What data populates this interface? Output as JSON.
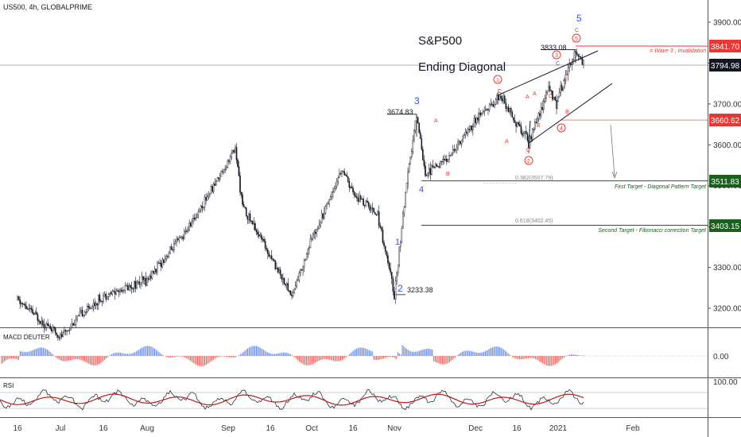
{
  "header": {
    "symbol": "US500, 4h, GLOBALPRIME"
  },
  "annotations": {
    "title": "S&P500",
    "subtitle": "Ending Diagonal",
    "wave_labels": {
      "w1": "1",
      "w2": "2",
      "w3": "3",
      "w4": "4",
      "w5": "5"
    },
    "sub_labels": {
      "c1": "1",
      "c2": "2",
      "c3": "3",
      "c4": "4",
      "c5": "5",
      "A": "A",
      "B": "B",
      "C": "C"
    },
    "price_notes": {
      "p3233": "3233.38",
      "p3674": "3674.83",
      "p3833": "3833.08"
    },
    "fib1": "0.382(3507.79)",
    "fib2": "0.618(3402.45)",
    "target1": "First Target - Diagonal Pattern Target",
    "target2": "Second Target - Fibonacci correction Target",
    "invalidation": "= Wave 3 , Invalidation"
  },
  "price_tags": {
    "t3841": "3841.70",
    "t3794": "3794.98",
    "t3660": "3660.62",
    "t3511": "3511.83",
    "t3403": "3403.15"
  },
  "colors": {
    "red": "#e53935",
    "green": "#1b5e20",
    "blue": "#3f51d8",
    "black": "#131722",
    "macd_pos": "#5b7ee5",
    "macd_neg": "#ef5350",
    "rsi_ma": "#b71c1c"
  },
  "chart_data": {
    "type": "candlestick",
    "timeframe": "4h",
    "y_axis": {
      "ticks": [
        "3200.00",
        "3300.00",
        "3400.00",
        "3500.00",
        "3600.00",
        "3700.00",
        "3800.00",
        "3900.00"
      ]
    },
    "x_axis": {
      "ticks": [
        "16",
        "Jul",
        "16",
        "Aug",
        "Sep",
        "16",
        "Oct",
        "16",
        "Nov",
        "Dec",
        "16",
        "2021",
        "Feb"
      ]
    },
    "waypoints_price": [
      [
        "16 Jun",
        3220
      ],
      [
        "Jul",
        3130
      ],
      [
        "8 Jul",
        3185
      ],
      [
        "16 Jul",
        3230
      ],
      [
        "Aug",
        3270
      ],
      [
        "16 Aug",
        3390
      ],
      [
        "Sep",
        3590
      ],
      [
        "4 Sep",
        3450
      ],
      [
        "16 Sep",
        3330
      ],
      [
        "23 Sep",
        3230
      ],
      [
        "Oct",
        3370
      ],
      [
        "12 Oct",
        3540
      ],
      [
        "16 Oct",
        3480
      ],
      [
        "26 Oct",
        3430
      ],
      [
        "Nov",
        3233.38
      ],
      [
        "4 Nov",
        3480
      ],
      [
        "9 Nov",
        3674.83
      ],
      [
        "12 Nov",
        3530
      ],
      [
        "20 Nov",
        3570
      ],
      [
        "Dec",
        3660
      ],
      [
        "9 Dec",
        3720
      ],
      [
        "16 Dec",
        3605
      ],
      [
        "24 Dec",
        3740
      ],
      [
        "29 Dec",
        3700
      ],
      [
        "2021",
        3720
      ],
      [
        "6 Jan",
        3833.08
      ],
      [
        "8 Jan",
        3794.98
      ]
    ],
    "levels": {
      "invalidation": 3841.7,
      "last": 3794.98,
      "wave4": 3660.62,
      "target1": 3511.83,
      "target2": 3403.15
    },
    "macd": {
      "title": "MACD DEUTER",
      "ticks": [
        "0.00"
      ]
    },
    "rsi": {
      "title": "RSI",
      "ticks": [
        "100.00"
      ]
    }
  }
}
